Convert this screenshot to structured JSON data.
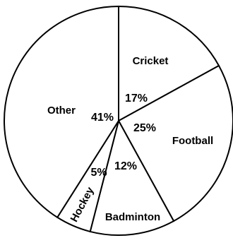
{
  "chart_data": {
    "type": "pie",
    "title": "",
    "slices": [
      {
        "label": "Cricket",
        "value": 17,
        "value_label": "17%"
      },
      {
        "label": "Football",
        "value": 25,
        "value_label": "25%"
      },
      {
        "label": "Badminton",
        "value": 12,
        "value_label": "12%"
      },
      {
        "label": "Hockey",
        "value": 5,
        "value_label": "5%"
      },
      {
        "label": "Other",
        "value": 41,
        "value_label": "41%"
      }
    ],
    "start": "12 o'clock",
    "direction": "clockwise",
    "colors": {
      "fill": "#ffffff",
      "stroke": "#000000"
    }
  }
}
